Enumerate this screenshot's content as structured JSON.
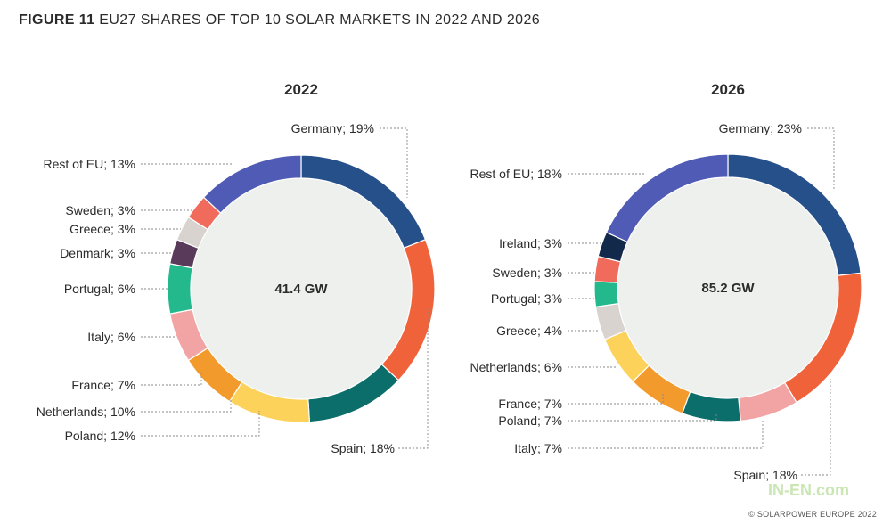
{
  "figure": {
    "number": "FIGURE 11",
    "title": "EU27 SHARES OF TOP 10 SOLAR MARKETS IN 2022 AND 2026",
    "credit": "© SOLARPOWER EUROPE 2022",
    "watermark": "IN-EN.com"
  },
  "colors": {
    "Germany": "#26508a",
    "Spain": "#f0623a",
    "Poland": "#0b6e6a",
    "Netherlands": "#fcd25a",
    "France": "#f39a2c",
    "Italy": "#f2a3a3",
    "Portugal": "#23b98c",
    "Denmark": "#5a3a5a",
    "Greece": "#d8d3cf",
    "Sweden": "#f06b5c",
    "Ireland": "#13294b",
    "Rest of EU": "#4f5bb5",
    "center_fill": "#eef0ee",
    "leader_line": "#888888"
  },
  "chart_data": [
    {
      "type": "pie",
      "subtype": "donut",
      "title": "2022",
      "center_label": "41.4 GW",
      "segments": [
        {
          "name": "Germany",
          "value": 19,
          "label": "Germany; 19%"
        },
        {
          "name": "Spain",
          "value": 18,
          "label": "Spain; 18%"
        },
        {
          "name": "Poland",
          "value": 12,
          "label": "Poland; 12%"
        },
        {
          "name": "Netherlands",
          "value": 10,
          "label": "Netherlands; 10%"
        },
        {
          "name": "France",
          "value": 7,
          "label": "France; 7%"
        },
        {
          "name": "Italy",
          "value": 6,
          "label": "Italy; 6%"
        },
        {
          "name": "Portugal",
          "value": 6,
          "label": "Portugal; 6%"
        },
        {
          "name": "Denmark",
          "value": 3,
          "label": "Denmark; 3%"
        },
        {
          "name": "Greece",
          "value": 3,
          "label": "Greece; 3%"
        },
        {
          "name": "Sweden",
          "value": 3,
          "label": "Sweden; 3%"
        },
        {
          "name": "Rest of EU",
          "value": 13,
          "label": "Rest of EU; 13%"
        }
      ]
    },
    {
      "type": "pie",
      "subtype": "donut",
      "title": "2026",
      "center_label": "85.2 GW",
      "segments": [
        {
          "name": "Germany",
          "value": 23,
          "label": "Germany; 23%"
        },
        {
          "name": "Spain",
          "value": 18,
          "label": "Spain; 18%"
        },
        {
          "name": "Italy",
          "value": 7,
          "label": "Italy; 7%"
        },
        {
          "name": "Poland",
          "value": 7,
          "label": "Poland; 7%"
        },
        {
          "name": "France",
          "value": 7,
          "label": "France; 7%"
        },
        {
          "name": "Netherlands",
          "value": 6,
          "label": "Netherlands; 6%"
        },
        {
          "name": "Greece",
          "value": 4,
          "label": "Greece; 4%"
        },
        {
          "name": "Portugal",
          "value": 3,
          "label": "Portugal; 3%"
        },
        {
          "name": "Sweden",
          "value": 3,
          "label": "Sweden; 3%"
        },
        {
          "name": "Ireland",
          "value": 3,
          "label": "Ireland; 3%"
        },
        {
          "name": "Rest of EU",
          "value": 18,
          "label": "Rest of EU; 18%"
        }
      ]
    }
  ]
}
